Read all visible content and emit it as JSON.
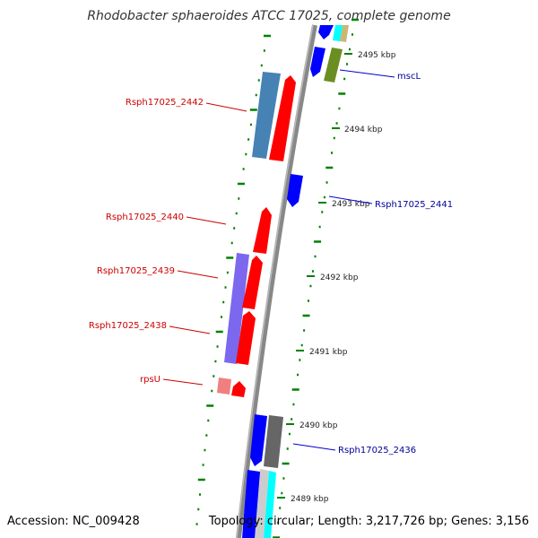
{
  "title": "Rhodobacter sphaeroides ATCC 17025, complete genome",
  "accession": "Accession: NC_009428",
  "topology": "Topology: circular; Length: 3,217,726 bp; Genes: 3,156",
  "colors": {
    "backbone": "#888888",
    "forward_gene": "#ff0000",
    "reverse_gene": "#0000ff",
    "forward_label": "#cc0000",
    "reverse_label": "#000099",
    "ticks": "#008000",
    "cog_blue": "#4682b4",
    "cog_purple": "#7b68ee",
    "cog_olive": "#6b8e23",
    "cog_gray": "#666666",
    "cog_cyan": "#00ffff",
    "cog_pink": "#f08080",
    "cog_tan": "#c8b878"
  },
  "scale_labels": [
    "2495 kbp",
    "2494 kbp",
    "2493 kbp",
    "2492 kbp",
    "2491 kbp",
    "2490 kbp",
    "2489 kbp"
  ],
  "gene_labels": [
    {
      "text": "mscL",
      "strand": "reverse"
    },
    {
      "text": "Rsph17025_2442",
      "strand": "forward"
    },
    {
      "text": "Rsph17025_2441",
      "strand": "reverse"
    },
    {
      "text": "Rsph17025_2440",
      "strand": "forward"
    },
    {
      "text": "Rsph17025_2439",
      "strand": "forward"
    },
    {
      "text": "Rsph17025_2438",
      "strand": "forward"
    },
    {
      "text": "rpsU",
      "strand": "forward"
    },
    {
      "text": "Rsph17025_2436",
      "strand": "reverse"
    }
  ]
}
